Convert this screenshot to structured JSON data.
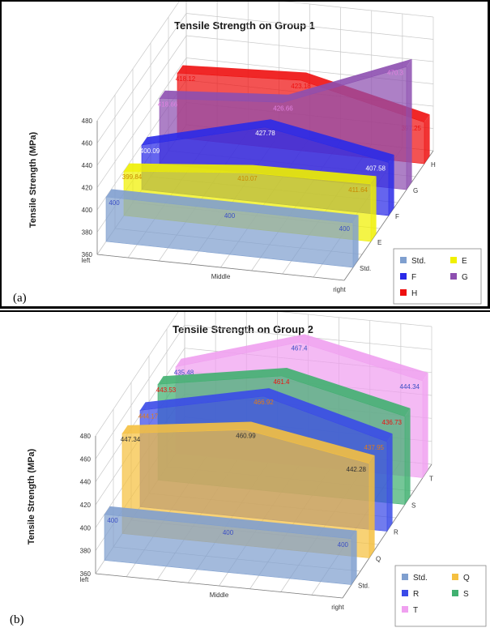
{
  "chart_data": [
    {
      "type": "area",
      "panel_label": "(a)",
      "title": "Tensile Strength on Group 1",
      "ylabel": "Tensile Strength (MPa)",
      "ylim": [
        360,
        480
      ],
      "yticks": [
        "360",
        "380",
        "400",
        "420",
        "440",
        "460",
        "480"
      ],
      "categories": [
        "left",
        "Middle",
        "right"
      ],
      "legend_position": "bottom-right",
      "series": [
        {
          "name": "Std.",
          "color": "#7f9fcf",
          "values": [
            400,
            400,
            400
          ],
          "labels": [
            "400",
            "400",
            "400"
          ],
          "label_color": "#3b4fc4"
        },
        {
          "name": "E",
          "color": "#f0f000",
          "values": [
            399.84,
            410.07,
            411.64
          ],
          "labels": [
            "399.84",
            "410.07",
            "411.64"
          ],
          "label_color": "#c98a00"
        },
        {
          "name": "F",
          "color": "#2a2ae8",
          "values": [
            400.09,
            427.78,
            407.58
          ],
          "labels": [
            "400.09",
            "427.78",
            "407.58"
          ],
          "label_color": "#ffffff"
        },
        {
          "name": "G",
          "color": "#8d4fb0",
          "values": [
            418.66,
            426.66,
            470.3
          ],
          "labels": [
            "418.66",
            "426.66",
            "470.3"
          ],
          "label_color": "#e080e0"
        },
        {
          "name": "H",
          "color": "#ee1010",
          "values": [
            418.12,
            423.18,
            397.25
          ],
          "labels": [
            "418.12",
            "423.18",
            "397.25"
          ],
          "label_color": "#ee1010"
        }
      ]
    },
    {
      "type": "area",
      "panel_label": "(b)",
      "title": "Tensile Strength on Group 2",
      "ylabel": "Tensile Strength (MPa)",
      "ylim": [
        360,
        480
      ],
      "yticks": [
        "360",
        "380",
        "400",
        "420",
        "440",
        "460",
        "480"
      ],
      "categories": [
        "left",
        "Middle",
        "right"
      ],
      "legend_position": "bottom-right",
      "series": [
        {
          "name": "Std.",
          "color": "#7f9fcf",
          "values": [
            400,
            400,
            400
          ],
          "labels": [
            "400",
            "400",
            "400"
          ],
          "label_color": "#3b4fc4"
        },
        {
          "name": "Q",
          "color": "#f5c040",
          "values": [
            447.34,
            460.99,
            442.28
          ],
          "labels": [
            "447.34",
            "460.99",
            "442.28"
          ],
          "label_color": "#333333"
        },
        {
          "name": "R",
          "color": "#3a4ae8",
          "values": [
            444.17,
            466.92,
            437.95
          ],
          "labels": [
            "444.17",
            "466.92",
            "437.95"
          ],
          "label_color": "#e07a1a"
        },
        {
          "name": "S",
          "color": "#40b070",
          "values": [
            443.53,
            461.4,
            436.73
          ],
          "labels": [
            "443.53",
            "461.4",
            "436.73"
          ],
          "label_color": "#ee1010"
        },
        {
          "name": "T",
          "color": "#f0a0f0",
          "values": [
            435.48,
            467.4,
            444.34
          ],
          "labels": [
            "435.48",
            "467.4",
            "444.34"
          ],
          "label_color": "#3b4fc4"
        }
      ]
    }
  ]
}
